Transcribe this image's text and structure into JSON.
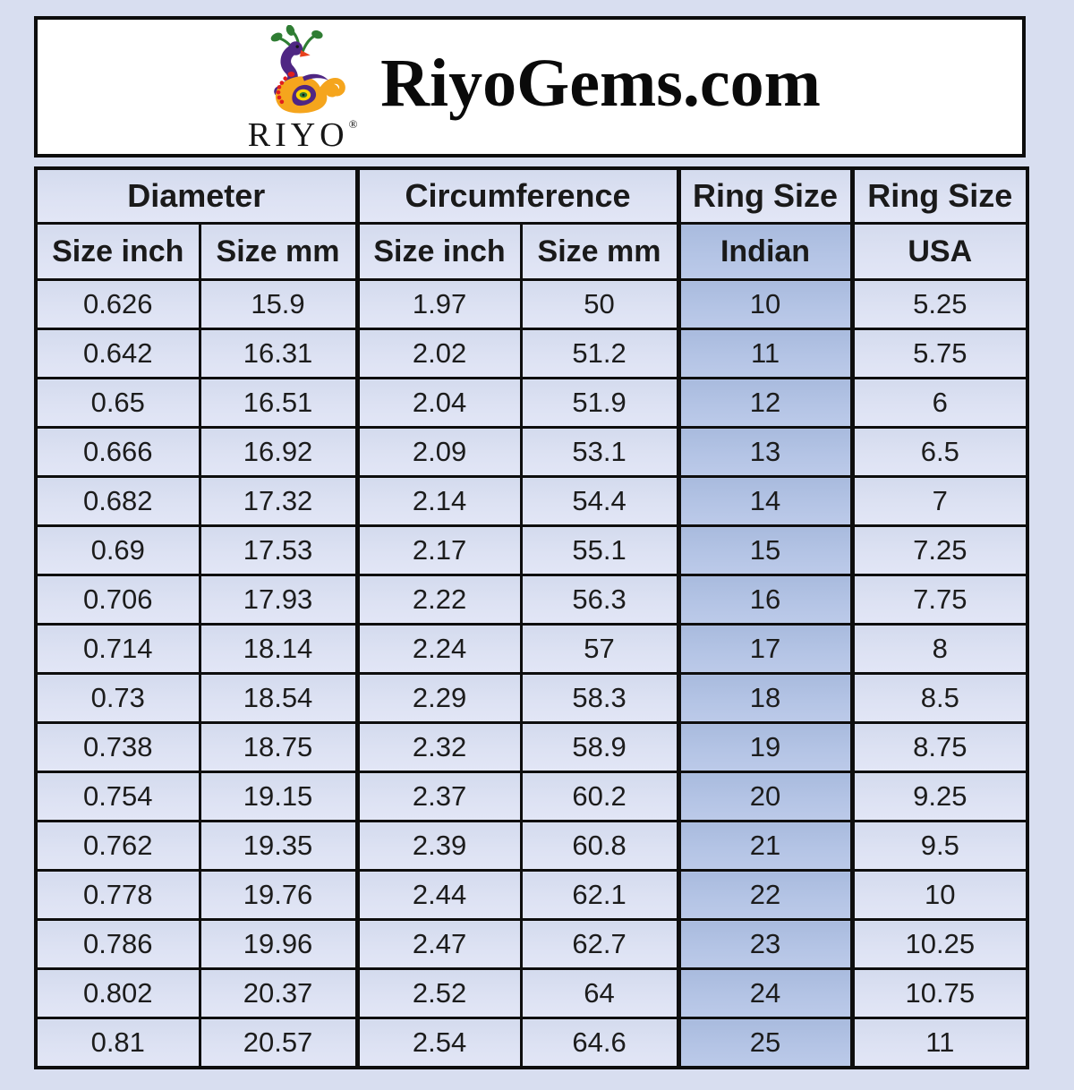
{
  "page": {
    "background_color": "#d8def0"
  },
  "header": {
    "brand": "RiyoGems.com",
    "logo": {
      "wordmark": "RIYO",
      "registered_mark": "®",
      "icon": "peacock-icon"
    }
  },
  "table": {
    "group_headers": [
      "Diameter",
      "Circumference",
      "Ring Size",
      "Ring Size"
    ],
    "column_headers": [
      "Size inch",
      "Size mm",
      "Size inch",
      "Size mm",
      "Indian",
      "USA"
    ],
    "rows": [
      [
        "0.626",
        "15.9",
        "1.97",
        "50",
        "10",
        "5.25"
      ],
      [
        "0.642",
        "16.31",
        "2.02",
        "51.2",
        "11",
        "5.75"
      ],
      [
        "0.65",
        "16.51",
        "2.04",
        "51.9",
        "12",
        "6"
      ],
      [
        "0.666",
        "16.92",
        "2.09",
        "53.1",
        "13",
        "6.5"
      ],
      [
        "0.682",
        "17.32",
        "2.14",
        "54.4",
        "14",
        "7"
      ],
      [
        "0.69",
        "17.53",
        "2.17",
        "55.1",
        "15",
        "7.25"
      ],
      [
        "0.706",
        "17.93",
        "2.22",
        "56.3",
        "16",
        "7.75"
      ],
      [
        "0.714",
        "18.14",
        "2.24",
        "57",
        "17",
        "8"
      ],
      [
        "0.73",
        "18.54",
        "2.29",
        "58.3",
        "18",
        "8.5"
      ],
      [
        "0.738",
        "18.75",
        "2.32",
        "58.9",
        "19",
        "8.75"
      ],
      [
        "0.754",
        "19.15",
        "2.37",
        "60.2",
        "20",
        "9.25"
      ],
      [
        "0.762",
        "19.35",
        "2.39",
        "60.8",
        "21",
        "9.5"
      ],
      [
        "0.778",
        "19.76",
        "2.44",
        "62.1",
        "22",
        "10"
      ],
      [
        "0.786",
        "19.96",
        "2.47",
        "62.7",
        "23",
        "10.25"
      ],
      [
        "0.802",
        "20.37",
        "2.52",
        "64",
        "24",
        "10.75"
      ],
      [
        "0.81",
        "20.57",
        "2.54",
        "64.6",
        "25",
        "11"
      ]
    ],
    "colors": {
      "cell_background": "#dbe1f2",
      "indian_column_background": "#b4c4e5",
      "border": "#0e0e0e",
      "text": "#1a1a1a",
      "header_box_background": "#ffffff"
    }
  },
  "chart_data": {
    "type": "table",
    "title": "RiyoGems.com ring size conversion chart",
    "columns": [
      "Diameter Size inch",
      "Diameter Size mm",
      "Circumference Size inch",
      "Circumference Size mm",
      "Ring Size Indian",
      "Ring Size USA"
    ],
    "rows": [
      [
        0.626,
        15.9,
        1.97,
        50,
        10,
        5.25
      ],
      [
        0.642,
        16.31,
        2.02,
        51.2,
        11,
        5.75
      ],
      [
        0.65,
        16.51,
        2.04,
        51.9,
        12,
        6
      ],
      [
        0.666,
        16.92,
        2.09,
        53.1,
        13,
        6.5
      ],
      [
        0.682,
        17.32,
        2.14,
        54.4,
        14,
        7
      ],
      [
        0.69,
        17.53,
        2.17,
        55.1,
        15,
        7.25
      ],
      [
        0.706,
        17.93,
        2.22,
        56.3,
        16,
        7.75
      ],
      [
        0.714,
        18.14,
        2.24,
        57,
        17,
        8
      ],
      [
        0.73,
        18.54,
        2.29,
        58.3,
        18,
        8.5
      ],
      [
        0.738,
        18.75,
        2.32,
        58.9,
        19,
        8.75
      ],
      [
        0.754,
        19.15,
        2.37,
        60.2,
        20,
        9.25
      ],
      [
        0.762,
        19.35,
        2.39,
        60.8,
        21,
        9.5
      ],
      [
        0.778,
        19.76,
        2.44,
        62.1,
        22,
        10
      ],
      [
        0.786,
        19.96,
        2.47,
        62.7,
        23,
        10.25
      ],
      [
        0.802,
        20.37,
        2.52,
        64,
        24,
        10.75
      ],
      [
        0.81,
        20.57,
        2.54,
        64.6,
        25,
        11
      ]
    ]
  }
}
